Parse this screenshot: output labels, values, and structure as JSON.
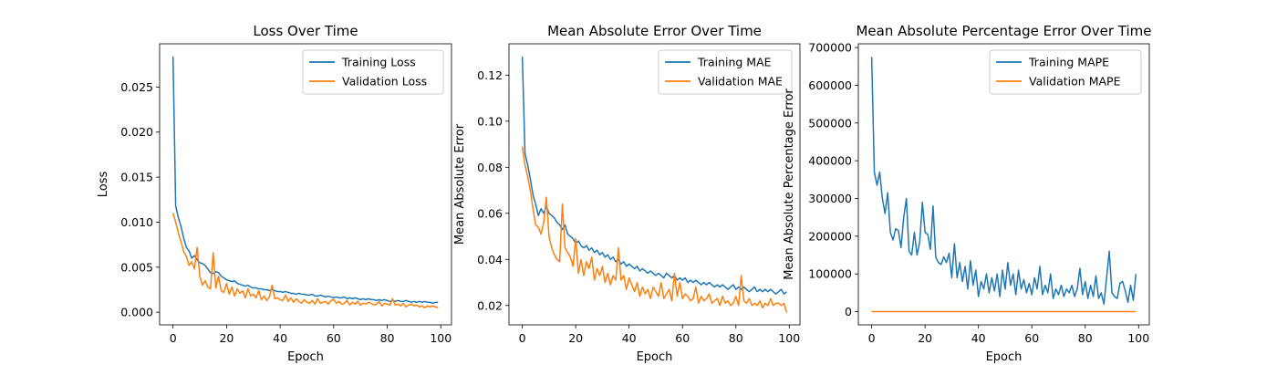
{
  "colors": {
    "training": "#1f77b4",
    "validation": "#ff7f0e"
  },
  "chart_data": [
    {
      "type": "line",
      "title": "Loss Over Time",
      "xlabel": "Epoch",
      "ylabel": "Loss",
      "xlim": [
        -5,
        104
      ],
      "ylim": [
        -0.0014,
        0.0298
      ],
      "xticks": [
        0,
        20,
        40,
        60,
        80,
        100
      ],
      "yticks": [
        0.0,
        0.005,
        0.01,
        0.015,
        0.02,
        0.025
      ],
      "ytick_labels": [
        "0.000",
        "0.005",
        "0.010",
        "0.015",
        "0.020",
        "0.025"
      ],
      "legend_position": "top-right",
      "series": [
        {
          "name": "Training Loss",
          "color": "#1f77b4",
          "values": [
            0.0284,
            0.0118,
            0.0105,
            0.0095,
            0.0082,
            0.0072,
            0.0068,
            0.006,
            0.0063,
            0.0058,
            0.0055,
            0.0054,
            0.0052,
            0.0048,
            0.0044,
            0.0043,
            0.0045,
            0.0044,
            0.004,
            0.0038,
            0.0036,
            0.0035,
            0.0034,
            0.0035,
            0.0032,
            0.0031,
            0.003,
            0.0029,
            0.003,
            0.0028,
            0.0027,
            0.0027,
            0.0026,
            0.0026,
            0.0025,
            0.0025,
            0.0024,
            0.0025,
            0.0024,
            0.0023,
            0.0023,
            0.0022,
            0.0023,
            0.0022,
            0.0021,
            0.0021,
            0.002,
            0.0021,
            0.002,
            0.002,
            0.0019,
            0.0019,
            0.002,
            0.0018,
            0.0018,
            0.0019,
            0.0018,
            0.0017,
            0.0018,
            0.0017,
            0.0016,
            0.0017,
            0.0016,
            0.0016,
            0.0017,
            0.0015,
            0.0016,
            0.0015,
            0.0016,
            0.0015,
            0.0014,
            0.0015,
            0.0014,
            0.0015,
            0.0014,
            0.0014,
            0.0013,
            0.0014,
            0.0013,
            0.0014,
            0.0013,
            0.0012,
            0.0013,
            0.0012,
            0.0013,
            0.0012,
            0.0012,
            0.0013,
            0.0012,
            0.0011,
            0.0012,
            0.0011,
            0.0012,
            0.0011,
            0.0012,
            0.0011,
            0.0011,
            0.001,
            0.0011,
            0.0011
          ]
        },
        {
          "name": "Validation Loss",
          "color": "#ff7f0e",
          "values": [
            0.011,
            0.01,
            0.0088,
            0.0078,
            0.0067,
            0.0062,
            0.0052,
            0.0056,
            0.0048,
            0.0072,
            0.004,
            0.003,
            0.0035,
            0.0028,
            0.0026,
            0.0066,
            0.0027,
            0.004,
            0.0024,
            0.0022,
            0.0032,
            0.002,
            0.0028,
            0.0018,
            0.0026,
            0.0021,
            0.0024,
            0.0016,
            0.0026,
            0.0018,
            0.002,
            0.0016,
            0.0024,
            0.0014,
            0.0018,
            0.0013,
            0.0017,
            0.003,
            0.0015,
            0.0016,
            0.0014,
            0.0013,
            0.0019,
            0.0012,
            0.0016,
            0.0011,
            0.0015,
            0.0012,
            0.001,
            0.0014,
            0.0011,
            0.001,
            0.0013,
            0.0009,
            0.0015,
            0.001,
            0.0011,
            0.0012,
            0.0009,
            0.0013,
            0.0014,
            0.001,
            0.0012,
            0.0009,
            0.001,
            0.0013,
            0.0008,
            0.0011,
            0.0009,
            0.0012,
            0.0008,
            0.001,
            0.0009,
            0.0011,
            0.001,
            0.0008,
            0.0009,
            0.0012,
            0.0007,
            0.001,
            0.0009,
            0.0008,
            0.0015,
            0.0008,
            0.0009,
            0.0007,
            0.001,
            0.0006,
            0.0008,
            0.0009,
            0.0007,
            0.0008,
            0.0006,
            0.0007,
            0.0005,
            0.0007,
            0.0006,
            0.0007,
            0.0006,
            0.0005
          ]
        }
      ]
    },
    {
      "type": "line",
      "title": "Mean Absolute Error Over Time",
      "xlabel": "Epoch",
      "ylabel": "Mean Absolute Error",
      "xlim": [
        -5,
        104
      ],
      "ylim": [
        0.0116,
        0.1336
      ],
      "xticks": [
        0,
        20,
        40,
        60,
        80,
        100
      ],
      "yticks": [
        0.02,
        0.04,
        0.06,
        0.08,
        0.1,
        0.12
      ],
      "ytick_labels": [
        "0.02",
        "0.04",
        "0.06",
        "0.08",
        "0.10",
        "0.12"
      ],
      "legend_position": "top-right",
      "series": [
        {
          "name": "Training MAE",
          "color": "#1f77b4",
          "values": [
            0.128,
            0.086,
            0.081,
            0.075,
            0.068,
            0.064,
            0.059,
            0.062,
            0.06,
            0.063,
            0.06,
            0.059,
            0.058,
            0.056,
            0.055,
            0.053,
            0.055,
            0.051,
            0.05,
            0.049,
            0.047,
            0.048,
            0.046,
            0.045,
            0.046,
            0.044,
            0.045,
            0.043,
            0.044,
            0.042,
            0.043,
            0.041,
            0.042,
            0.04,
            0.041,
            0.039,
            0.04,
            0.038,
            0.039,
            0.037,
            0.038,
            0.037,
            0.036,
            0.037,
            0.035,
            0.036,
            0.035,
            0.034,
            0.035,
            0.034,
            0.033,
            0.034,
            0.033,
            0.032,
            0.034,
            0.033,
            0.032,
            0.033,
            0.031,
            0.032,
            0.031,
            0.032,
            0.03,
            0.031,
            0.03,
            0.031,
            0.03,
            0.029,
            0.03,
            0.029,
            0.03,
            0.029,
            0.028,
            0.029,
            0.028,
            0.029,
            0.028,
            0.027,
            0.028,
            0.029,
            0.027,
            0.028,
            0.027,
            0.028,
            0.027,
            0.026,
            0.027,
            0.028,
            0.026,
            0.027,
            0.026,
            0.027,
            0.026,
            0.027,
            0.026,
            0.025,
            0.026,
            0.027,
            0.025,
            0.026
          ]
        },
        {
          "name": "Validation MAE",
          "color": "#ff7f0e",
          "values": [
            0.089,
            0.081,
            0.076,
            0.07,
            0.062,
            0.055,
            0.054,
            0.051,
            0.056,
            0.067,
            0.05,
            0.045,
            0.042,
            0.04,
            0.039,
            0.064,
            0.045,
            0.043,
            0.041,
            0.037,
            0.049,
            0.034,
            0.04,
            0.033,
            0.039,
            0.036,
            0.041,
            0.031,
            0.036,
            0.033,
            0.037,
            0.03,
            0.034,
            0.029,
            0.033,
            0.031,
            0.045,
            0.031,
            0.033,
            0.027,
            0.032,
            0.029,
            0.026,
            0.03,
            0.024,
            0.028,
            0.025,
            0.027,
            0.023,
            0.028,
            0.026,
            0.024,
            0.03,
            0.023,
            0.025,
            0.027,
            0.022,
            0.034,
            0.024,
            0.03,
            0.023,
            0.025,
            0.024,
            0.022,
            0.023,
            0.028,
            0.021,
            0.024,
            0.022,
            0.023,
            0.025,
            0.021,
            0.022,
            0.023,
            0.02,
            0.024,
            0.021,
            0.022,
            0.02,
            0.021,
            0.024,
            0.02,
            0.033,
            0.022,
            0.021,
            0.023,
            0.02,
            0.021,
            0.02,
            0.022,
            0.019,
            0.021,
            0.02,
            0.023,
            0.02,
            0.021,
            0.021,
            0.02,
            0.021,
            0.017
          ]
        }
      ]
    },
    {
      "type": "line",
      "title": "Mean Absolute Percentage Error Over Time",
      "xlabel": "Epoch",
      "ylabel": "Mean Absolute Percentage Error",
      "xlim": [
        -5,
        104
      ],
      "ylim": [
        -35000,
        710000
      ],
      "xticks": [
        0,
        20,
        40,
        60,
        80,
        100
      ],
      "yticks": [
        0,
        100000,
        200000,
        300000,
        400000,
        500000,
        600000,
        700000
      ],
      "ytick_labels": [
        "0",
        "100000",
        "200000",
        "300000",
        "400000",
        "500000",
        "600000",
        "700000"
      ],
      "legend_position": "top-right",
      "series": [
        {
          "name": "Training MAPE",
          "color": "#1f77b4",
          "values": [
            675000,
            370000,
            335000,
            370000,
            300000,
            260000,
            315000,
            210000,
            190000,
            220000,
            215000,
            170000,
            250000,
            300000,
            160000,
            150000,
            210000,
            150000,
            185000,
            290000,
            210000,
            205000,
            165000,
            280000,
            145000,
            130000,
            125000,
            145000,
            130000,
            155000,
            90000,
            180000,
            90000,
            130000,
            80000,
            120000,
            60000,
            135000,
            70000,
            110000,
            40000,
            80000,
            60000,
            100000,
            50000,
            90000,
            55000,
            100000,
            40000,
            110000,
            60000,
            130000,
            70000,
            100000,
            45000,
            110000,
            60000,
            85000,
            50000,
            75000,
            45000,
            90000,
            60000,
            120000,
            45000,
            70000,
            50000,
            100000,
            35000,
            60000,
            45000,
            70000,
            40000,
            60000,
            50000,
            70000,
            40000,
            60000,
            115000,
            45000,
            80000,
            35000,
            70000,
            40000,
            95000,
            35000,
            50000,
            20000,
            90000,
            160000,
            50000,
            40000,
            35000,
            75000,
            80000,
            55000,
            25000,
            70000,
            30000,
            100000
          ]
        },
        {
          "name": "Validation MAPE",
          "color": "#ff7f0e",
          "values": [
            0,
            0,
            0,
            0,
            0,
            0,
            0,
            0,
            0,
            0,
            0,
            0,
            0,
            0,
            0,
            0,
            0,
            0,
            0,
            0,
            0,
            0,
            0,
            0,
            0,
            0,
            0,
            0,
            0,
            0,
            0,
            0,
            0,
            0,
            0,
            0,
            0,
            0,
            0,
            0,
            0,
            0,
            0,
            0,
            0,
            0,
            0,
            0,
            0,
            0,
            0,
            0,
            0,
            0,
            0,
            0,
            0,
            0,
            0,
            0,
            0,
            0,
            0,
            0,
            0,
            0,
            0,
            0,
            0,
            0,
            0,
            0,
            0,
            0,
            0,
            0,
            0,
            0,
            0,
            0,
            0,
            0,
            0,
            0,
            0,
            0,
            0,
            0,
            0,
            0,
            0,
            0,
            0,
            0,
            0,
            0,
            0,
            0,
            0,
            0
          ]
        }
      ]
    }
  ]
}
